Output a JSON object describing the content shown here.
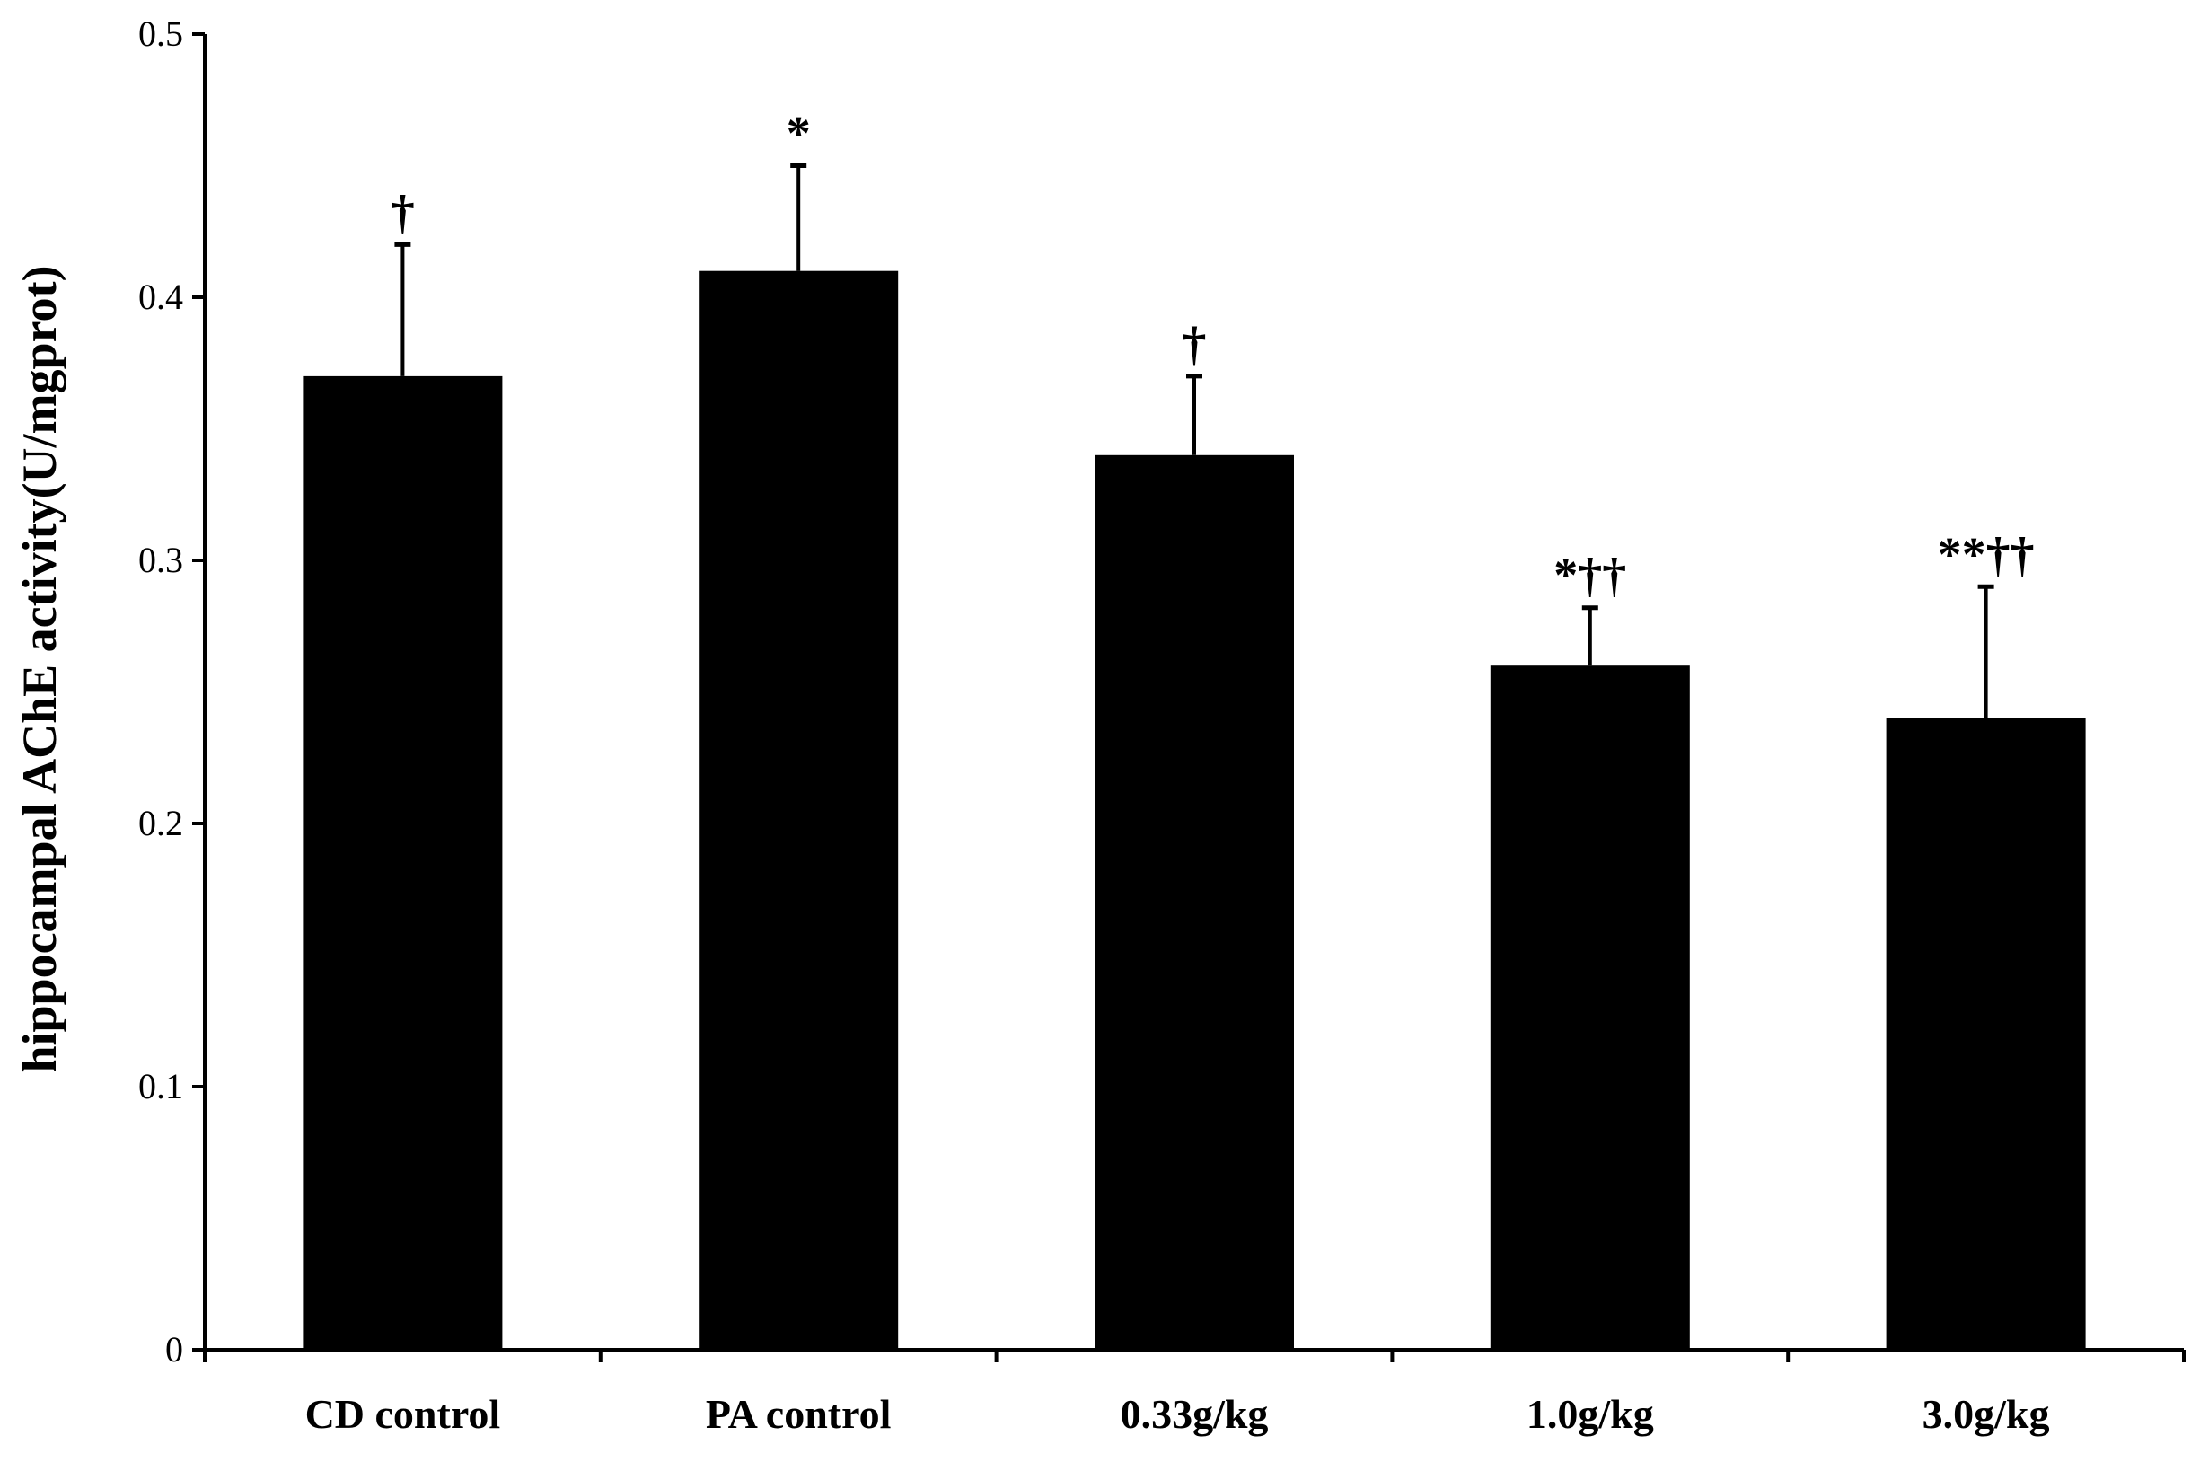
{
  "chart_data": {
    "type": "bar",
    "title": "",
    "xlabel": "",
    "ylabel": "hippocampal AChE activity(U/mgprot)",
    "ylim": [
      0,
      0.5
    ],
    "yticks": [
      "0",
      "0.1",
      "0.2",
      "0.3",
      "0.4",
      "0.5"
    ],
    "ytick_values": [
      0,
      0.1,
      0.2,
      0.3,
      0.4,
      0.5
    ],
    "categories": [
      "CD control",
      "PA control",
      "0.33g/kg",
      "1.0g/kg",
      "3.0g/kg"
    ],
    "values": [
      0.37,
      0.41,
      0.34,
      0.26,
      0.24
    ],
    "errors": [
      0.05,
      0.04,
      0.03,
      0.022,
      0.05
    ],
    "significance": [
      "†",
      "*",
      "†",
      "*††",
      "**††"
    ],
    "bar_color": "#000000",
    "grid": false
  }
}
